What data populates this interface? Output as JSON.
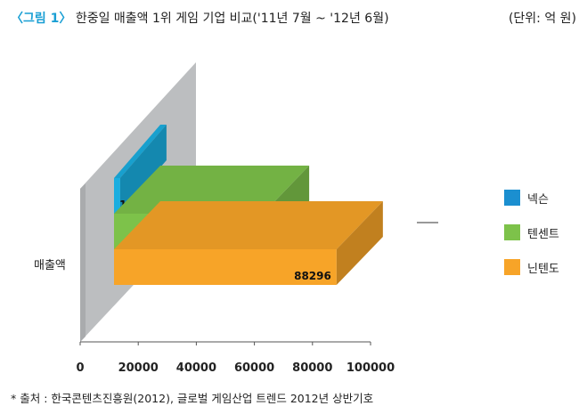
{
  "header": {
    "figure_label": "〈그림 1〉",
    "title": "한중일 매출액 1위 게임 기업 비교('11년 7월 ~ '12년 6월)",
    "unit": "(단위: 억 원)"
  },
  "footer": {
    "source": "* 출처 : 한국콘텐츠진흥원(2012), 글로벌 게임산업 트렌드 2012년 상반기호"
  },
  "chart_data": {
    "type": "bar",
    "orientation": "horizontal",
    "style": "3d",
    "categories": [
      "매출액"
    ],
    "series": [
      {
        "name": "넥슨",
        "values": [
          13772
        ],
        "color": "#1aaee0"
      },
      {
        "name": "텐센트",
        "values": [
          62910
        ],
        "color": "#7dc24a"
      },
      {
        "name": "닌텐도",
        "values": [
          88296
        ],
        "color": "#f7a428"
      }
    ],
    "ylabel": "매출액",
    "xlim": [
      0,
      100000
    ],
    "xticks": [
      0,
      20000,
      40000,
      60000,
      80000,
      100000
    ],
    "legend_position": "right",
    "grid": false
  }
}
